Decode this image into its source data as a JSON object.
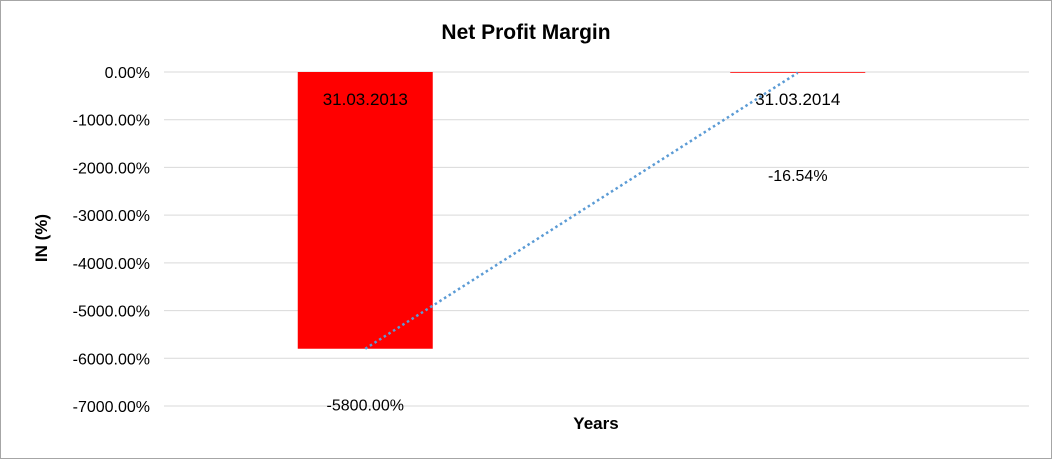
{
  "chart_data": {
    "type": "bar",
    "title": "Net Profit Margin",
    "xlabel": "Years",
    "ylabel": "IN (%)",
    "categories": [
      "31.03.2013",
      "31.03.2014"
    ],
    "values": [
      -5800.0,
      -16.54
    ],
    "data_labels": [
      "-5800.00%",
      "-16.54%"
    ],
    "ylim": [
      -7000,
      0
    ],
    "yticks": [
      0,
      -1000,
      -2000,
      -3000,
      -4000,
      -5000,
      -6000,
      -7000
    ],
    "ytick_labels": [
      "0.00%",
      "-1000.00%",
      "-2000.00%",
      "-3000.00%",
      "-4000.00%",
      "-5000.00%",
      "-6000.00%",
      "-7000.00%"
    ],
    "grid": true,
    "legend": "none",
    "bar_color": "#ff0000",
    "trendline": {
      "type": "linear",
      "style": "dotted",
      "color": "#5b9bd5"
    },
    "gridline_color": "#d9d9d9"
  }
}
